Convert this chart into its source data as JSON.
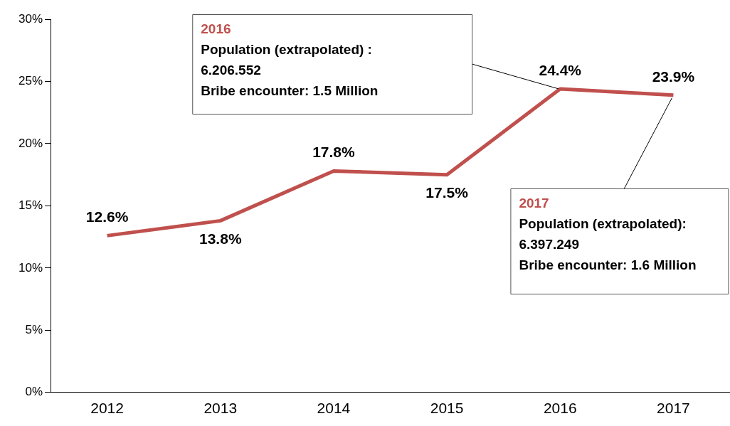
{
  "chart_data": {
    "type": "line",
    "categories": [
      "2012",
      "2013",
      "2014",
      "2015",
      "2016",
      "2017"
    ],
    "series": [
      {
        "color": "#c0504d",
        "values": [
          12.6,
          13.8,
          17.8,
          17.5,
          24.4,
          23.9
        ],
        "value_labels": [
          "12.6%",
          "13.8%",
          "17.8%",
          "17.5%",
          "24.4%",
          "23.9%"
        ]
      }
    ],
    "ylim": [
      0,
      30
    ],
    "yticks": [
      {
        "value": 0,
        "label": "0%"
      },
      {
        "value": 5,
        "label": "5%"
      },
      {
        "value": 10,
        "label": "10%"
      },
      {
        "value": 15,
        "label": "15%"
      },
      {
        "value": 20,
        "label": "20%"
      },
      {
        "value": 25,
        "label": "25%"
      },
      {
        "value": 30,
        "label": "30%"
      }
    ],
    "grid": false,
    "legend": false,
    "annotations": [
      "2016\nPopulation (extrapolated) :\n6.206.552\nBribe encounter: 1.5 Million",
      {
        "text": "2017\nPopulation (extrapolated):\n6.397.249\nBribe encounter: 1.6 Million",
        "x": "2017",
        "y": 23.9
      }
    ]
  }
}
